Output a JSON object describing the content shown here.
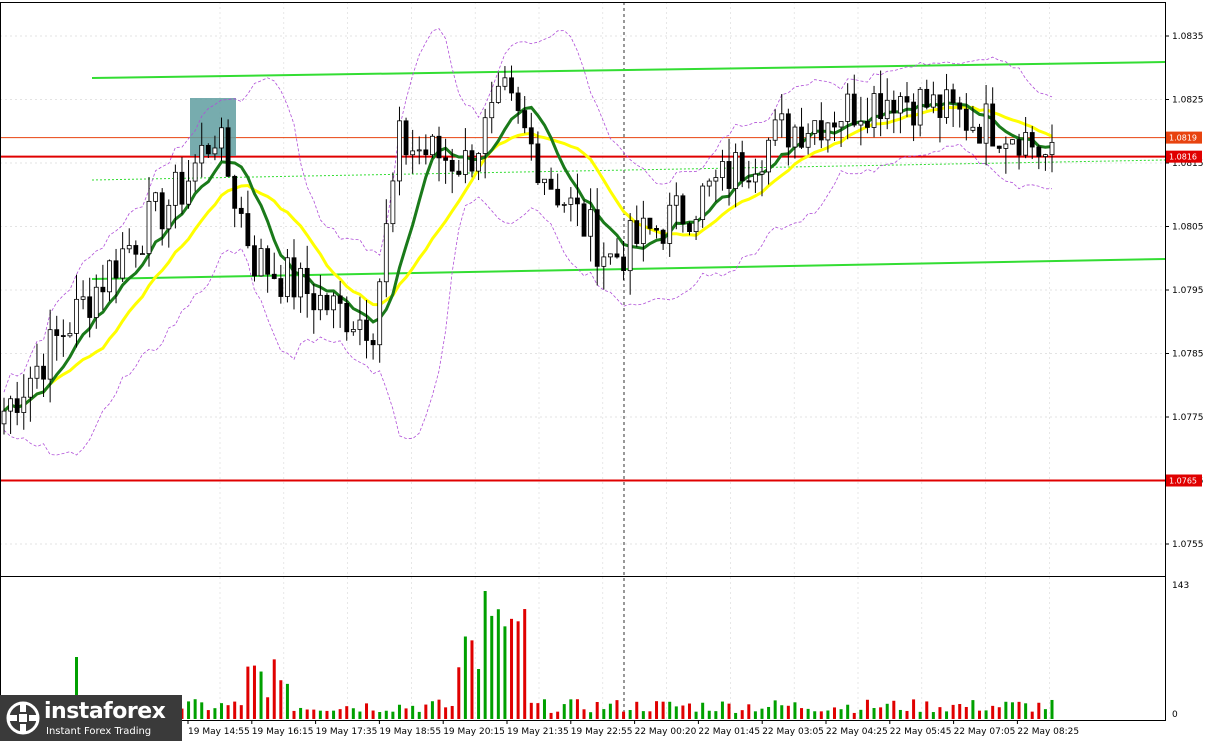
{
  "chart": {
    "price_ticks": [
      "1.0835",
      "1.0825",
      "1.0815",
      "1.0805",
      "1.0795",
      "1.0785",
      "1.0775",
      "1.0765",
      "1.0755"
    ],
    "price_tags": [
      {
        "value": "1.0819",
        "color": "#e8430f"
      },
      {
        "value": "1.0816",
        "color": "#e00000"
      },
      {
        "value": "1.0765",
        "color": "#e00000"
      }
    ],
    "volume_ticks": [
      "143",
      "0"
    ],
    "time_labels": [
      "19 May 14:55",
      "19 May 16:15",
      "19 May 17:35",
      "19 May 18:55",
      "19 May 20:15",
      "19 May 21:35",
      "19 May 22:55",
      "22 May 00:20",
      "22 May 01:45",
      "22 May 03:05",
      "22 May 04:25",
      "22 May 05:45",
      "22 May 07:05",
      "22 May 08:25"
    ],
    "colors": {
      "fast_ma": "#1a7a1a",
      "slow_ma": "#ffff00",
      "bands": "#b04fd8",
      "channel": "#33dd33",
      "level_line": "#e00000",
      "volume_up": "#00a000",
      "volume_down": "#e00000",
      "highlight": "#5f9ea0"
    }
  },
  "logo": {
    "brand": "instaforex",
    "tagline": "Instant Forex Trading"
  }
}
